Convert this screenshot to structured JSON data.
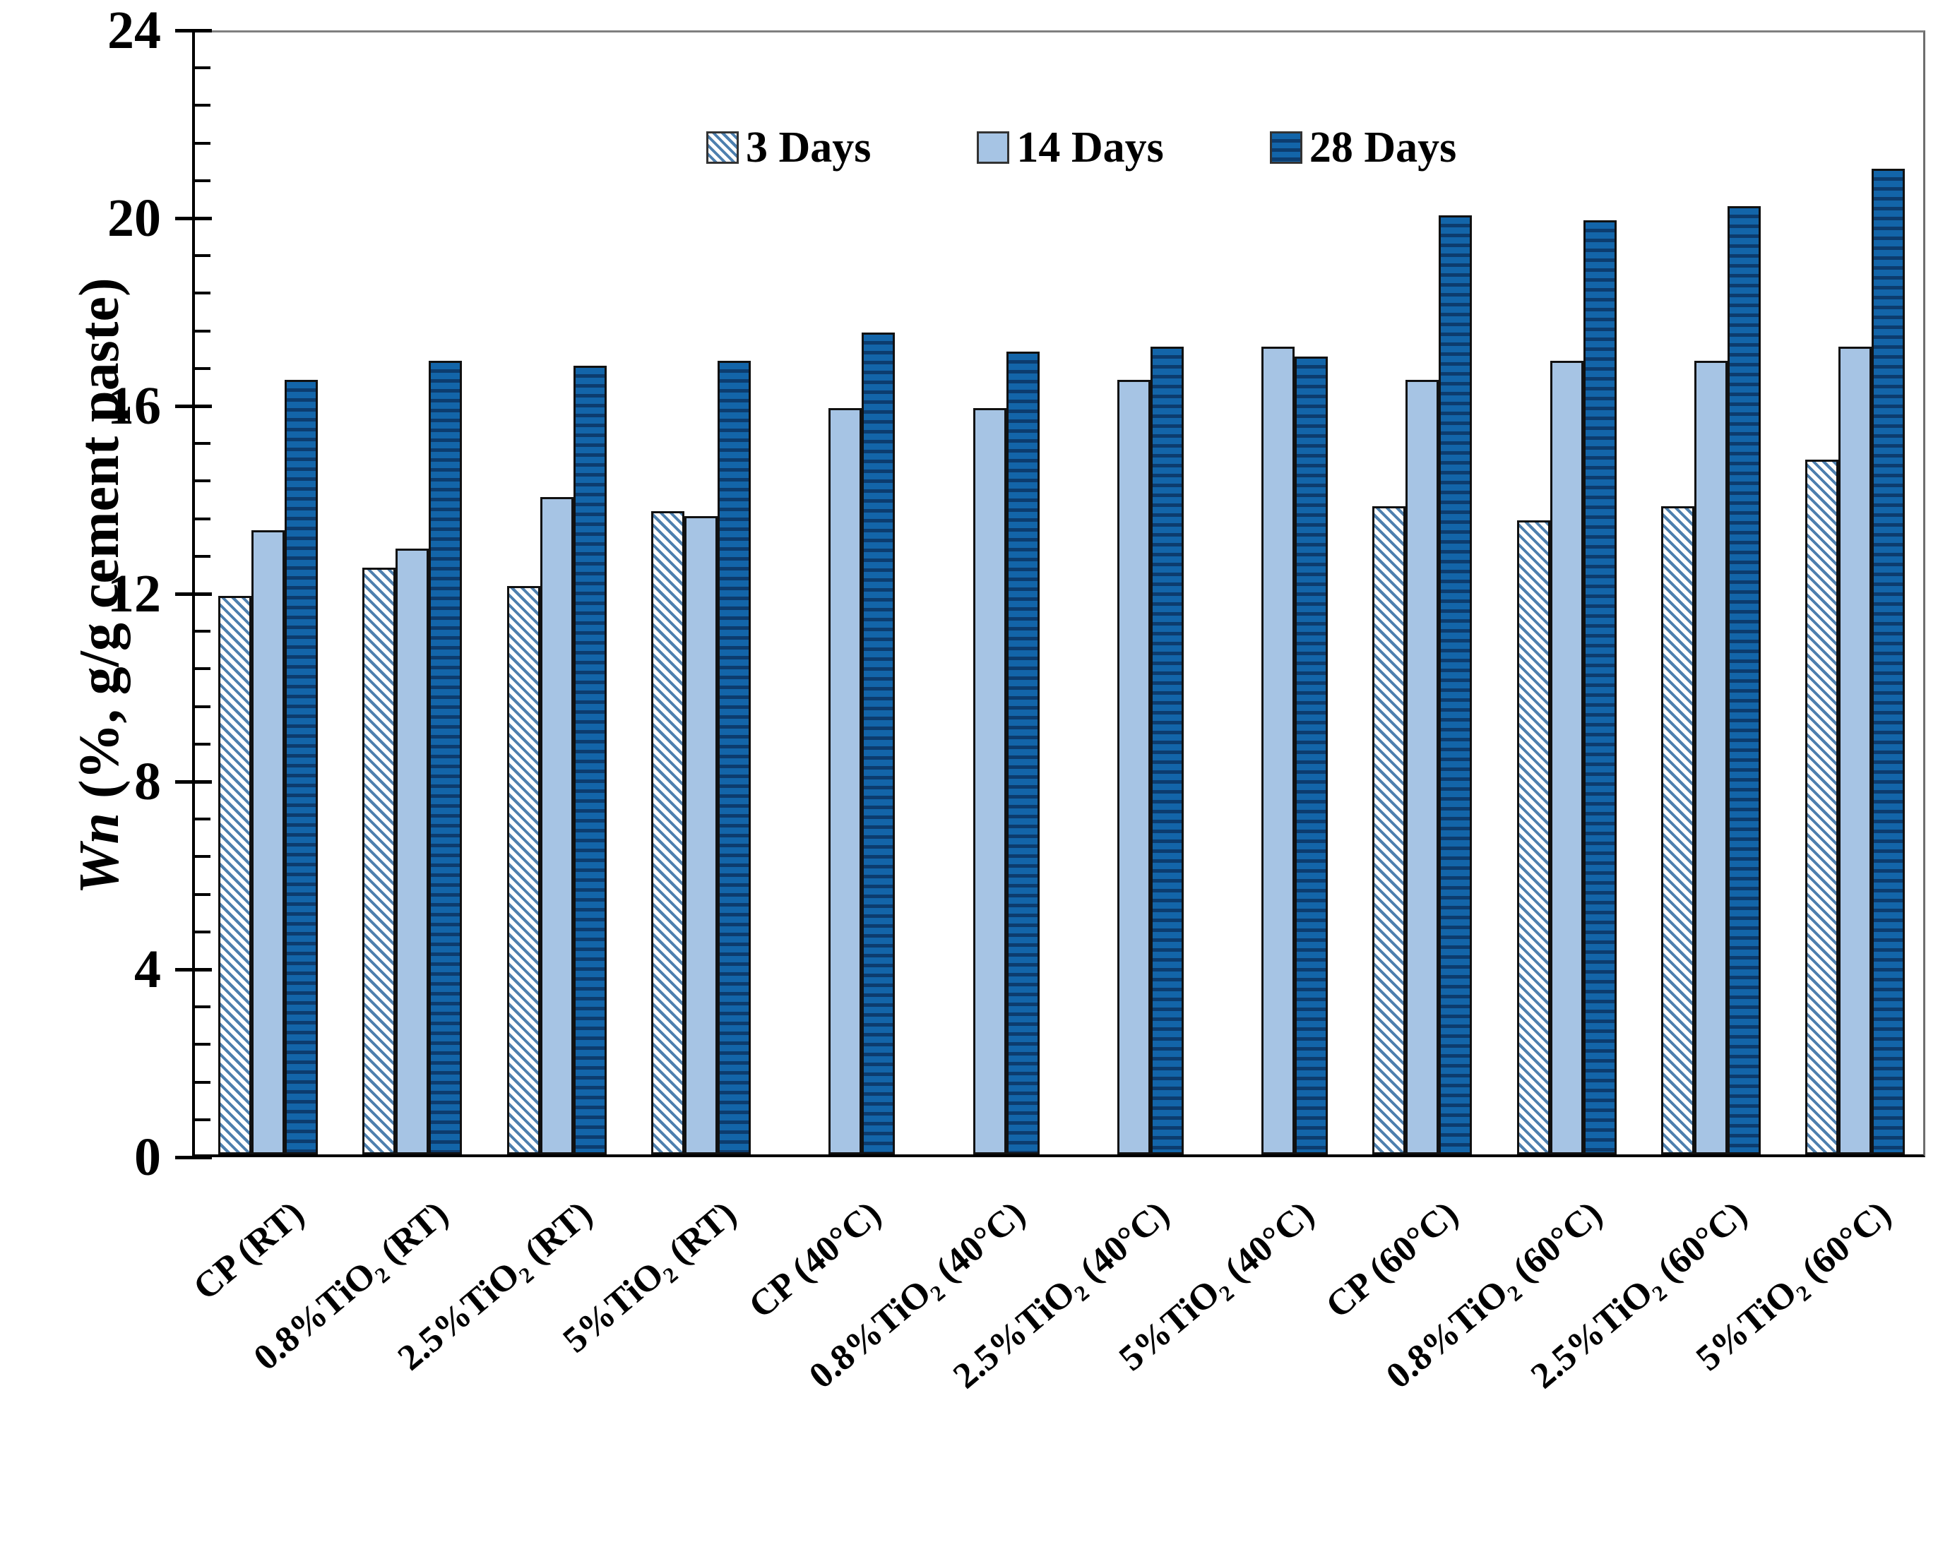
{
  "chart_data": {
    "type": "bar",
    "title": "",
    "ylabel_prefix": "Wn",
    "ylabel_rest": " (%, g/g cement paste)",
    "ylim": [
      0,
      24
    ],
    "y_major_ticks": [
      0,
      4,
      8,
      12,
      16,
      20,
      24
    ],
    "y_minor_step": 0.8,
    "grid": false,
    "legend_position": "top-center-inside",
    "categories": [
      "CP (RT)",
      "0.8%TiO₂ (RT)",
      "2.5%TiO₂ (RT)",
      "5%TiO₂ (RT)",
      "CP (40°C)",
      "0.8%TiO₂ (40°C)",
      "2.5%TiO₂ (40°C)",
      "5%TiO₂ (40°C)",
      "CP (60°C)",
      "0.8%TiO₂ (60°C)",
      "2.5%TiO₂ (60°C)",
      "5%TiO₂ (60°C)"
    ],
    "series": [
      {
        "name": "3 Days",
        "style": "diagonal-hatch",
        "values": [
          11.9,
          12.5,
          12.1,
          13.7,
          null,
          null,
          null,
          null,
          13.8,
          13.5,
          13.8,
          14.8
        ]
      },
      {
        "name": "14 Days",
        "style": "solid-light-blue",
        "values": [
          13.3,
          12.9,
          14.0,
          13.6,
          15.9,
          15.9,
          16.5,
          17.2,
          16.5,
          16.9,
          16.9,
          17.2
        ]
      },
      {
        "name": "28 Days",
        "style": "dark-blue-horizontal-stripes",
        "values": [
          16.5,
          16.9,
          16.8,
          16.9,
          17.5,
          17.1,
          17.2,
          17.0,
          20.0,
          19.9,
          20.2,
          21.0
        ]
      }
    ],
    "colors": {
      "light_blue": "#a6c4e4",
      "dark_blue": "#1365a9",
      "dark_blue_stripe": "#0c3c6e",
      "hatch_stripe": "#4d7fae",
      "bar_border": "#111111",
      "axis": "#000000",
      "box_border": "#7f7f7f"
    }
  }
}
